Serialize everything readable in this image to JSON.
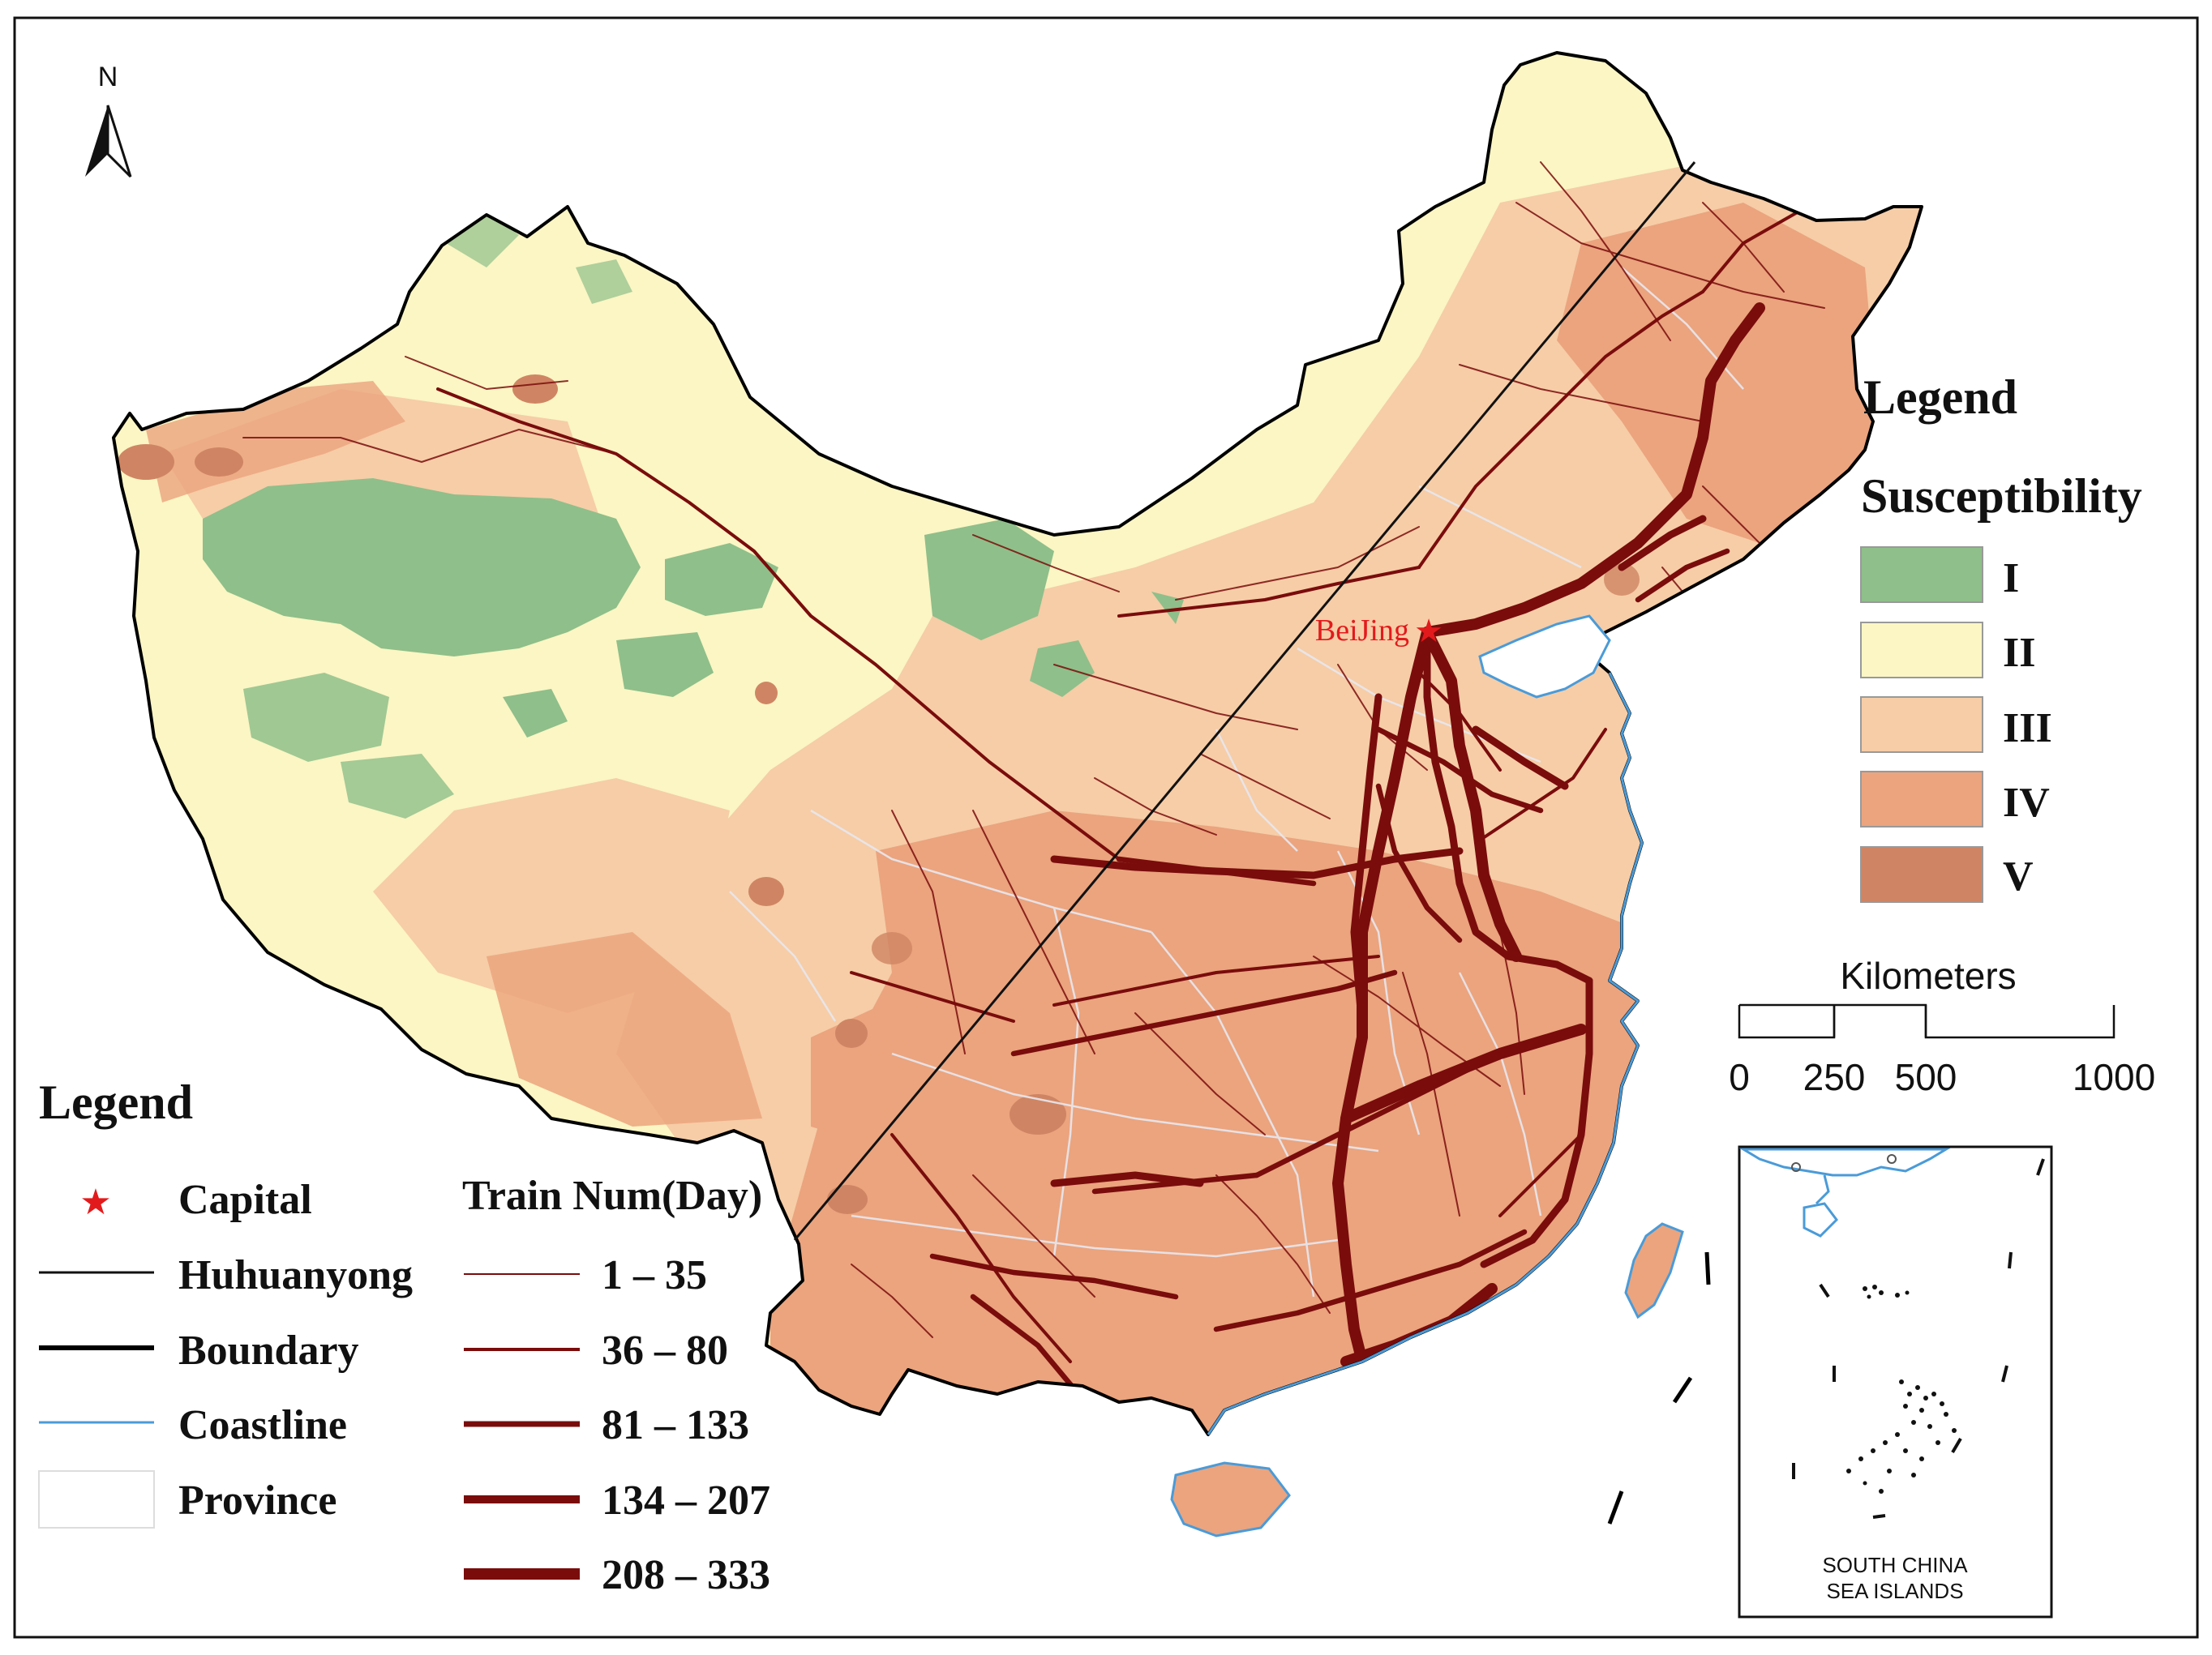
{
  "north_arrow": {
    "label": "N"
  },
  "capital": {
    "label": "BeiJing"
  },
  "legend_left": {
    "title": "Legend",
    "items": [
      {
        "label": "Capital",
        "symbol": "star",
        "color": "#e31a1c"
      },
      {
        "label": "Huhuanyong",
        "symbol": "line",
        "color": "#111111"
      },
      {
        "label": "Boundary",
        "symbol": "thick-line",
        "color": "#000000"
      },
      {
        "label": "Coastline",
        "symbol": "line",
        "color": "#4a9bd8"
      },
      {
        "label": "Province",
        "symbol": "box",
        "color": "#ffffff"
      }
    ],
    "train_title": "Train Num(Day)",
    "train_classes": [
      "1 – 35",
      "36 – 80",
      "81 – 133",
      "134 – 207",
      "208 – 333"
    ],
    "train_color": "#7a0c0c"
  },
  "legend_right": {
    "title": "Legend",
    "subtitle": "Susceptibility",
    "classes": [
      {
        "label": "I",
        "color": "#8fbf8a"
      },
      {
        "label": "II",
        "color": "#fbf6c4"
      },
      {
        "label": "III",
        "color": "#f6cda7"
      },
      {
        "label": "IV",
        "color": "#eba47e"
      },
      {
        "label": "V",
        "color": "#cf8563"
      }
    ]
  },
  "scale_bar": {
    "unit": "Kilometers",
    "ticks": [
      "0",
      "250",
      "500",
      "1000"
    ]
  },
  "inset": {
    "caption_line1": "SOUTH CHINA",
    "caption_line2": "SEA ISLANDS"
  },
  "colors": {
    "boundary": "#000000",
    "rail": "#7a0c0c",
    "coastline": "#4a9bd8",
    "capital": "#e31a1c"
  }
}
